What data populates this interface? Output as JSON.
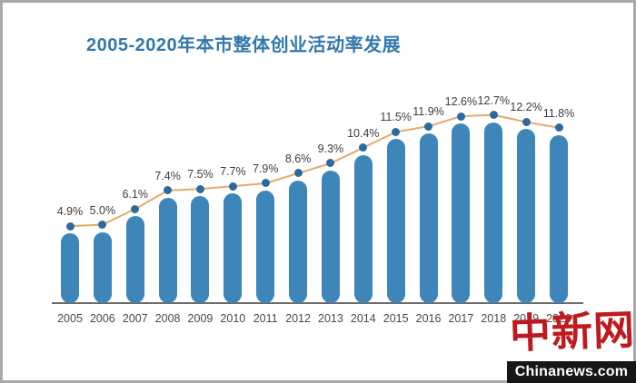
{
  "title": "2005-2020年本市整体创业活动率发展",
  "chart_data": {
    "type": "bar",
    "overlay": "line",
    "title": "2005-2020年本市整体创业活动率发展",
    "categories": [
      "2005",
      "2006",
      "2007",
      "2008",
      "2009",
      "2010",
      "2011",
      "2012",
      "2013",
      "2014",
      "2015",
      "2016",
      "2017",
      "2018",
      "2019",
      "2020"
    ],
    "values": [
      4.9,
      5.0,
      6.1,
      7.4,
      7.5,
      7.7,
      7.9,
      8.6,
      9.3,
      10.4,
      11.5,
      11.9,
      12.6,
      12.7,
      12.2,
      11.8
    ],
    "point_labels": [
      "4.9%",
      "5.0%",
      "6.1%",
      "7.4%",
      "7.5%",
      "7.7%",
      "7.9%",
      "8.6%",
      "9.3%",
      "10.4%",
      "11.5%",
      "11.9%",
      "12.6%",
      "12.7%",
      "12.2%",
      "11.8%"
    ],
    "xlabel": "",
    "ylabel": "",
    "ylim": [
      0,
      14
    ],
    "grid": false,
    "legend": false
  },
  "colors": {
    "title": "#3379ad",
    "bar": "#3e86ba",
    "dot": "#2b6a9f",
    "line": "#e3aa67",
    "axis": "#6b6b6b",
    "watermark_red": "#bf1a1f",
    "banner_bg": "#161616"
  },
  "watermark": {
    "logo_text": "中新网",
    "site_text": "Chinanews.com"
  }
}
